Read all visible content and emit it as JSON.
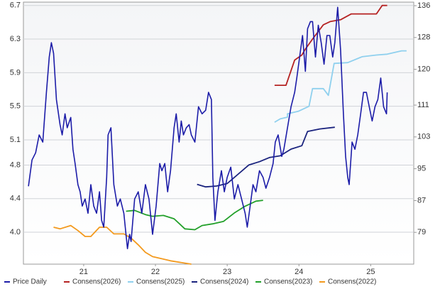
{
  "chart_data": {
    "type": "line",
    "xlim": [
      20.16,
      25.6
    ],
    "xticks": [
      21,
      22,
      23,
      24,
      25
    ],
    "ylim": [
      3.62,
      6.74
    ],
    "yticks": [
      {
        "value": 4.0,
        "label": "4.0"
      },
      4.4,
      4.8,
      5.1,
      5.5,
      5.9,
      6.3,
      6.7
    ],
    "y2lim": [
      71,
      136.9
    ],
    "y2ticks": [
      79,
      87,
      95,
      103,
      111,
      120,
      128,
      136
    ],
    "grid": true,
    "legend": "bottom",
    "series": [
      {
        "name": "Price Daily",
        "color": "#1c1ca8",
        "axis": "y2",
        "x": [
          20.23,
          20.28,
          20.33,
          20.38,
          20.43,
          20.48,
          20.52,
          20.55,
          20.58,
          20.62,
          20.67,
          20.7,
          20.74,
          20.77,
          20.82,
          20.85,
          20.88,
          20.92,
          20.95,
          20.98,
          21.02,
          21.06,
          21.1,
          21.14,
          21.18,
          21.22,
          21.25,
          21.28,
          21.32,
          21.34,
          21.38,
          21.42,
          21.47,
          21.51,
          21.56,
          21.61,
          21.64,
          21.66,
          21.71,
          21.76,
          21.81,
          21.86,
          21.91,
          21.96,
          22.01,
          22.06,
          22.09,
          22.13,
          22.17,
          22.21,
          22.26,
          22.29,
          22.33,
          22.36,
          22.39,
          22.43,
          22.47,
          22.5,
          22.55,
          22.6,
          22.65,
          22.7,
          22.74,
          22.78,
          22.8,
          22.83,
          22.87,
          22.92,
          22.96,
          23.0,
          23.05,
          23.1,
          23.15,
          23.2,
          23.25,
          23.28,
          23.32,
          23.36,
          23.4,
          23.45,
          23.5,
          23.54,
          23.59,
          23.64,
          23.67,
          23.71,
          23.76,
          23.79,
          23.84,
          23.89,
          23.94,
          23.97,
          24.01,
          24.05,
          24.09,
          24.12,
          24.16,
          24.19,
          24.23,
          24.27,
          24.31,
          24.35,
          24.39,
          24.43,
          24.47,
          24.5,
          24.54,
          24.58,
          24.62,
          24.65,
          24.68,
          24.7,
          24.74,
          24.78,
          24.82,
          24.86,
          24.9,
          24.94,
          24.98,
          25.02,
          25.06,
          25.1,
          25.14,
          25.18,
          25.22,
          25.23
        ],
        "values": [
          90.6,
          97.2,
          99,
          103.5,
          101.7,
          114.2,
          123.1,
          126.7,
          124,
          112.4,
          106.1,
          103.5,
          108.8,
          105.3,
          107.9,
          99.9,
          96.3,
          91,
          89.2,
          85.6,
          87.4,
          83.8,
          91,
          85.6,
          83.8,
          89.2,
          82,
          80.3,
          92.8,
          103.5,
          105.3,
          91,
          85.6,
          87.4,
          83.8,
          74.9,
          78.5,
          76.7,
          87.4,
          89.2,
          83.8,
          91,
          87.4,
          78.5,
          85.6,
          96.3,
          94.5,
          96.3,
          89.2,
          94.5,
          105.3,
          108.8,
          101.7,
          107,
          103.5,
          105.3,
          106.1,
          103.5,
          101.7,
          110.6,
          108.8,
          109.7,
          114.2,
          112.4,
          92.8,
          82,
          89.2,
          94.5,
          89.2,
          92.8,
          95.4,
          87.4,
          91,
          87.4,
          83.8,
          80.3,
          85.6,
          91,
          89.2,
          94.5,
          92.8,
          90.1,
          92.8,
          96.3,
          101.7,
          103.5,
          98.1,
          99.9,
          105.3,
          110.6,
          114.2,
          117.8,
          123.1,
          128.5,
          119.5,
          130.2,
          132,
          132,
          123.1,
          131.1,
          126.7,
          121.3,
          128.5,
          128.5,
          123.1,
          126.7,
          135.6,
          124.9,
          108.8,
          98.1,
          92.8,
          91,
          101.7,
          99.9,
          103.5,
          108.8,
          114.2,
          114.2,
          110.6,
          107,
          110.6,
          112.4,
          117.8,
          110.6,
          108.8,
          114.2
        ]
      },
      {
        "name": "Consens(2026)",
        "color": "#b52222",
        "x": [
          23.66,
          23.82,
          23.94,
          24.04,
          24.09,
          24.19,
          24.34,
          24.44,
          24.58,
          24.73,
          25.08,
          25.16,
          25.23
        ],
        "values": [
          5.75,
          5.75,
          6.05,
          6.11,
          6.18,
          6.3,
          6.47,
          6.51,
          6.53,
          6.6,
          6.6,
          6.7,
          6.7
        ]
      },
      {
        "name": "Consens(2025)",
        "color": "#8fd0ee",
        "x": [
          23.66,
          23.74,
          23.84,
          23.84,
          23.99,
          24.14,
          24.19,
          24.34,
          24.41,
          24.49,
          24.68,
          24.88,
          25.08,
          25.23,
          25.43,
          25.5
        ],
        "values": [
          5.31,
          5.35,
          5.37,
          5.41,
          5.44,
          5.5,
          5.71,
          5.71,
          5.63,
          6.01,
          6.02,
          6.09,
          6.11,
          6.12,
          6.16,
          6.16
        ]
      },
      {
        "name": "Consens(2024)",
        "color": "#1a237e",
        "x": [
          22.58,
          22.7,
          22.85,
          23.0,
          23.15,
          23.3,
          23.45,
          23.59,
          23.74,
          23.89,
          24.04,
          24.12,
          24.29,
          24.5
        ],
        "values": [
          4.57,
          4.54,
          4.55,
          4.58,
          4.69,
          4.8,
          4.84,
          4.89,
          4.91,
          4.99,
          5.03,
          5.2,
          5.23,
          5.25
        ]
      },
      {
        "name": "Consens(2023)",
        "color": "#22a02a",
        "x": [
          21.59,
          21.71,
          21.86,
          21.96,
          22.11,
          22.26,
          22.41,
          22.55,
          22.65,
          22.8,
          22.95,
          23.1,
          23.25,
          23.4,
          23.5
        ],
        "values": [
          4.25,
          4.26,
          4.21,
          4.19,
          4.2,
          4.16,
          4.04,
          4.03,
          4.08,
          4.1,
          4.13,
          4.23,
          4.31,
          4.37,
          4.38
        ]
      },
      {
        "name": "Consens(2022)",
        "color": "#f39a1e",
        "x": [
          20.58,
          20.67,
          20.82,
          20.92,
          21.02,
          21.1,
          21.22,
          21.32,
          21.42,
          21.56,
          21.66,
          21.76,
          21.86,
          21.96,
          22.11,
          22.21,
          22.5
        ],
        "values": [
          4.06,
          4.04,
          4.08,
          4.02,
          3.95,
          3.95,
          4.06,
          4.06,
          3.98,
          3.98,
          3.93,
          3.85,
          3.76,
          3.71,
          3.68,
          3.66,
          3.62
        ]
      }
    ]
  }
}
